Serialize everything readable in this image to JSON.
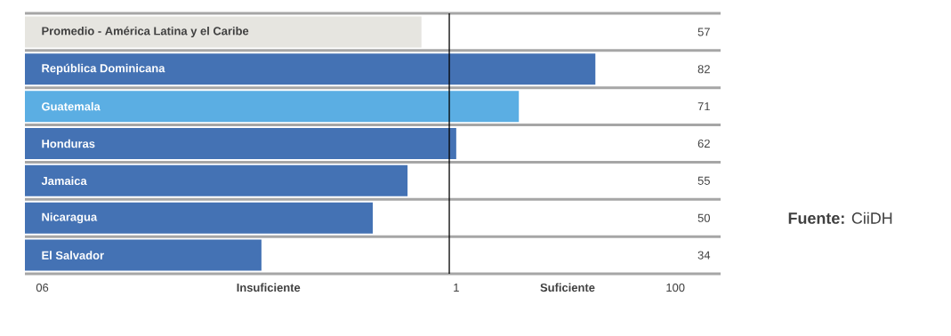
{
  "chart_data": {
    "type": "bar",
    "orientation": "horizontal",
    "categories": [
      "Promedio - América Latina y el Caribe",
      "República Dominicana",
      "Guatemala",
      "Honduras",
      "Jamaica",
      "Nicaragua",
      "El Salvador"
    ],
    "values": [
      57,
      82,
      71,
      62,
      55,
      50,
      34
    ],
    "colors": [
      "#e6e5e0",
      "#4472b4",
      "#5baee3",
      "#4472b4",
      "#4472b4",
      "#4472b4",
      "#4472b4"
    ],
    "data_labels": true,
    "xlim": [
      0,
      100
    ],
    "ref_lines": [
      {
        "axis": "x",
        "value": 61,
        "color": "#000000"
      }
    ],
    "annotations": [
      "06",
      "Insuficiente",
      "1",
      "Suficiente",
      "100",
      "**Fuente:** CiiDH"
    ]
  }
}
